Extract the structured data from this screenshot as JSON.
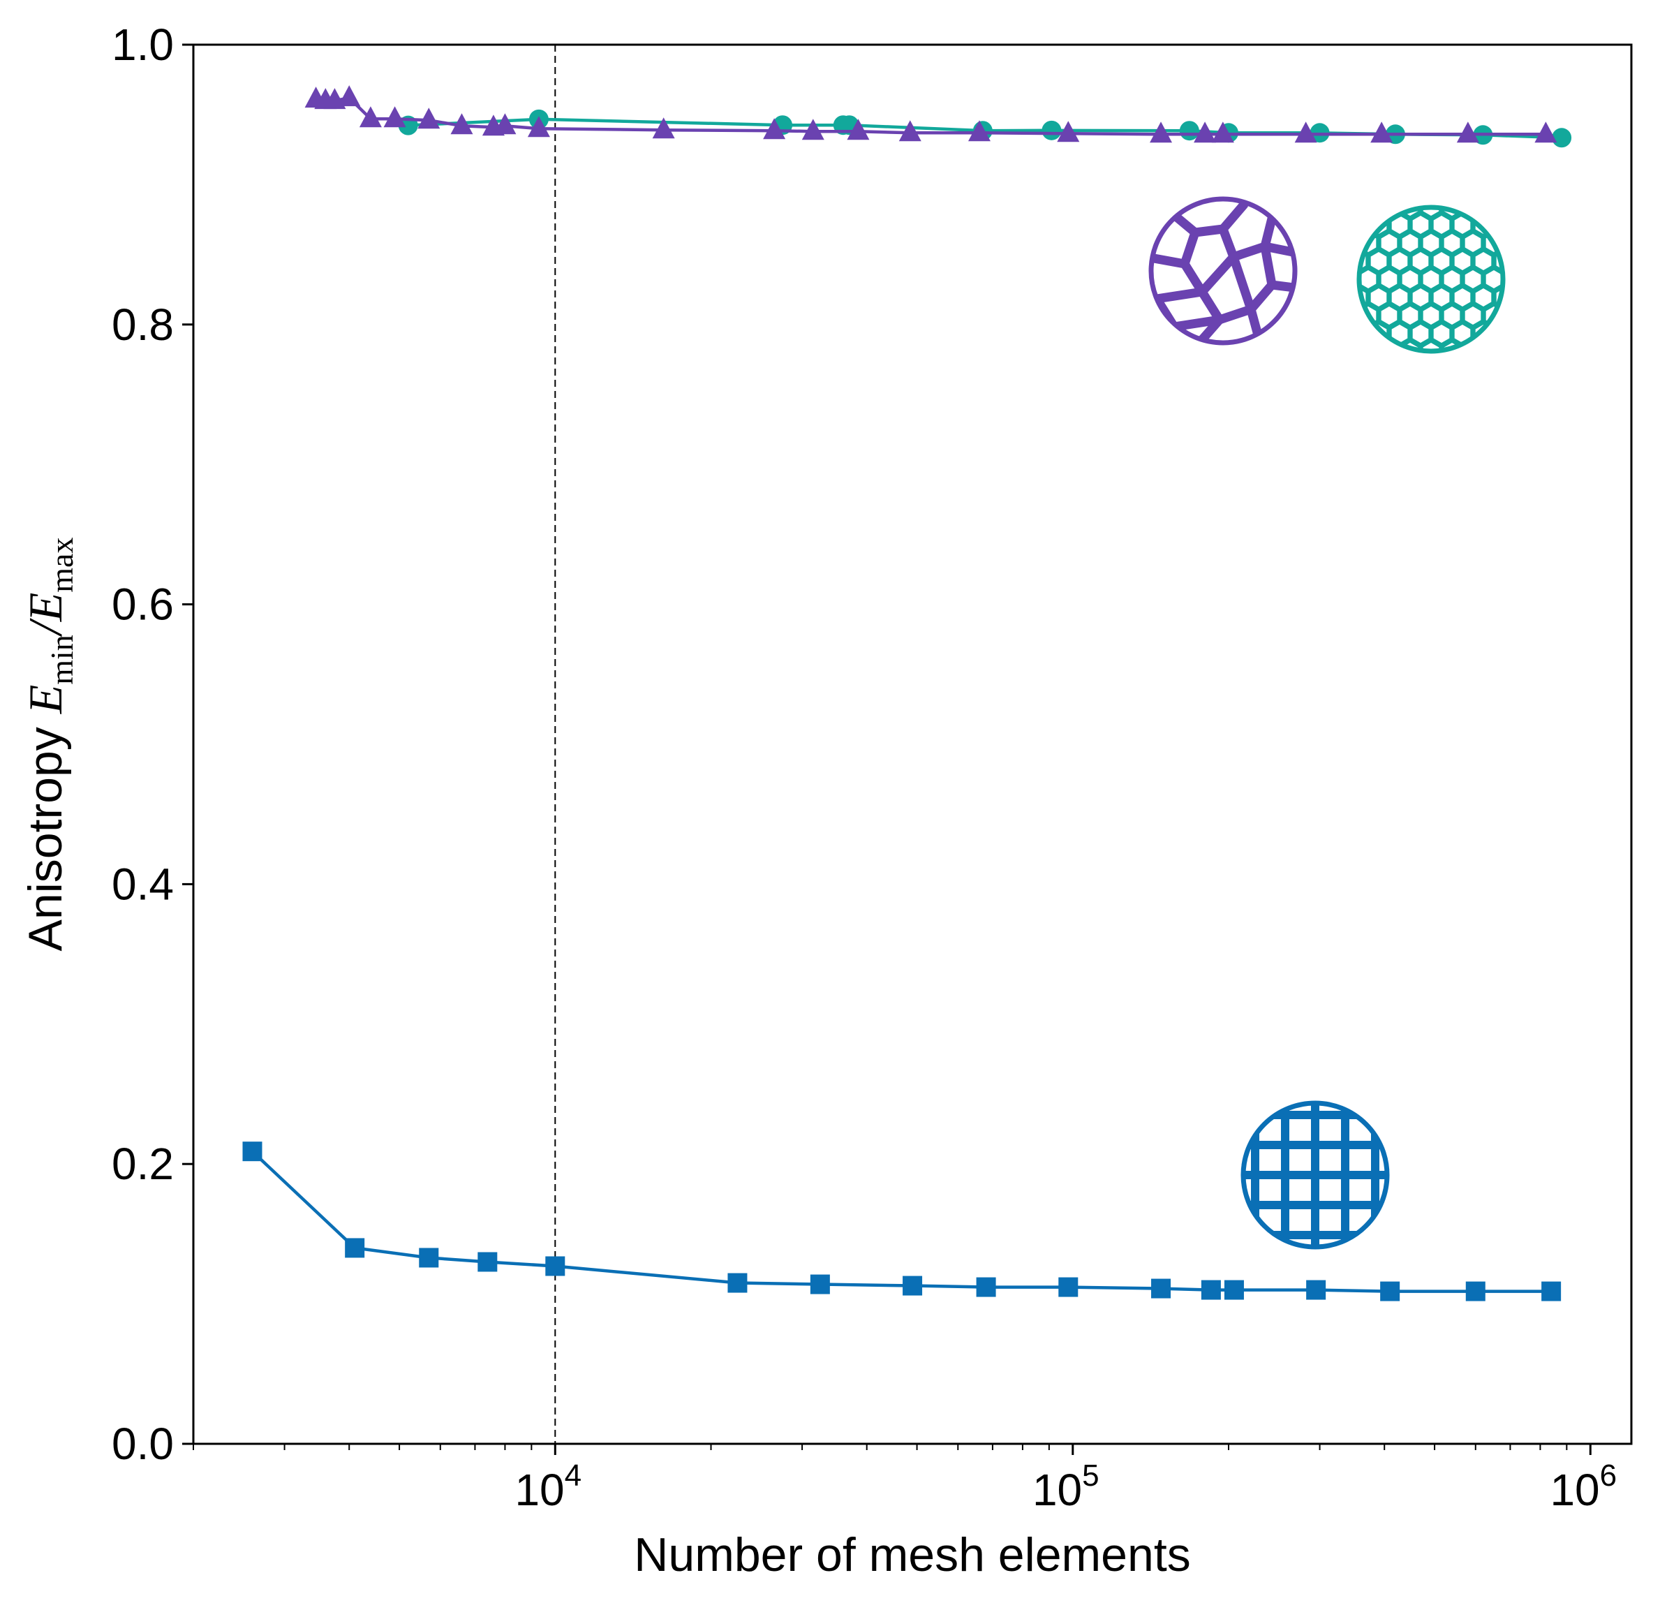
{
  "chart_data": {
    "type": "line",
    "x_scale": "log",
    "xlim": [
      2000,
      1200000
    ],
    "ylim": [
      0.0,
      1.0
    ],
    "xlabel": "Number of mesh elements",
    "ylabel_text": "Anisotropy ",
    "ylabel_math": {
      "e1": "E",
      "sub1": "min",
      "slash": "/",
      "e2": "E",
      "sub2": "max"
    },
    "x_ticks": [
      {
        "value": 10000,
        "base": "10",
        "exp": "4"
      },
      {
        "value": 100000,
        "base": "10",
        "exp": "5"
      },
      {
        "value": 1000000,
        "base": "10",
        "exp": "6"
      }
    ],
    "y_ticks": [
      {
        "value": 0.0,
        "label": "0.0"
      },
      {
        "value": 0.2,
        "label": "0.2"
      },
      {
        "value": 0.4,
        "label": "0.4"
      },
      {
        "value": 0.6,
        "label": "0.6"
      },
      {
        "value": 0.8,
        "label": "0.8"
      },
      {
        "value": 1.0,
        "label": "1.0"
      }
    ],
    "vline_x": 10000,
    "grid": false,
    "series": [
      {
        "id": "teal",
        "marker": "circle",
        "color": "#12a89b",
        "icon": "hexagonal-lattice-icon",
        "x": [
          5200,
          9300,
          27500,
          36000,
          37000,
          67000,
          91000,
          168000,
          200000,
          300000,
          420000,
          620000,
          880000
        ],
        "y": [
          0.9423,
          0.9467,
          0.9425,
          0.9425,
          0.9425,
          0.9385,
          0.9387,
          0.9385,
          0.937,
          0.937,
          0.936,
          0.9355,
          0.9335
        ]
      },
      {
        "id": "purple",
        "marker": "triangle",
        "color": "#6a42b0",
        "icon": "voronoi-lattice-icon",
        "x": [
          3450,
          3600,
          3750,
          4000,
          4400,
          4900,
          5700,
          6600,
          7600,
          8000,
          9300,
          16200,
          26500,
          31500,
          38500,
          48500,
          66000,
          98000,
          148000,
          180000,
          195000,
          282000,
          395000,
          580000,
          820000
        ],
        "y": [
          0.961,
          0.96,
          0.96,
          0.962,
          0.947,
          0.947,
          0.946,
          0.942,
          0.941,
          0.942,
          0.94,
          0.939,
          0.9385,
          0.938,
          0.938,
          0.937,
          0.937,
          0.9365,
          0.936,
          0.936,
          0.936,
          0.936,
          0.936,
          0.936,
          0.936
        ]
      },
      {
        "id": "blue",
        "marker": "square",
        "color": "#0a6fb5",
        "icon": "square-lattice-icon",
        "x": [
          2600,
          4100,
          5700,
          7400,
          10000,
          22500,
          32500,
          49000,
          68000,
          98000,
          148000,
          185000,
          205000,
          295000,
          410000,
          600000,
          840000
        ],
        "y": [
          0.209,
          0.14,
          0.133,
          0.13,
          0.127,
          0.115,
          0.114,
          0.113,
          0.112,
          0.112,
          0.111,
          0.11,
          0.11,
          0.11,
          0.109,
          0.109,
          0.109
        ]
      }
    ]
  }
}
